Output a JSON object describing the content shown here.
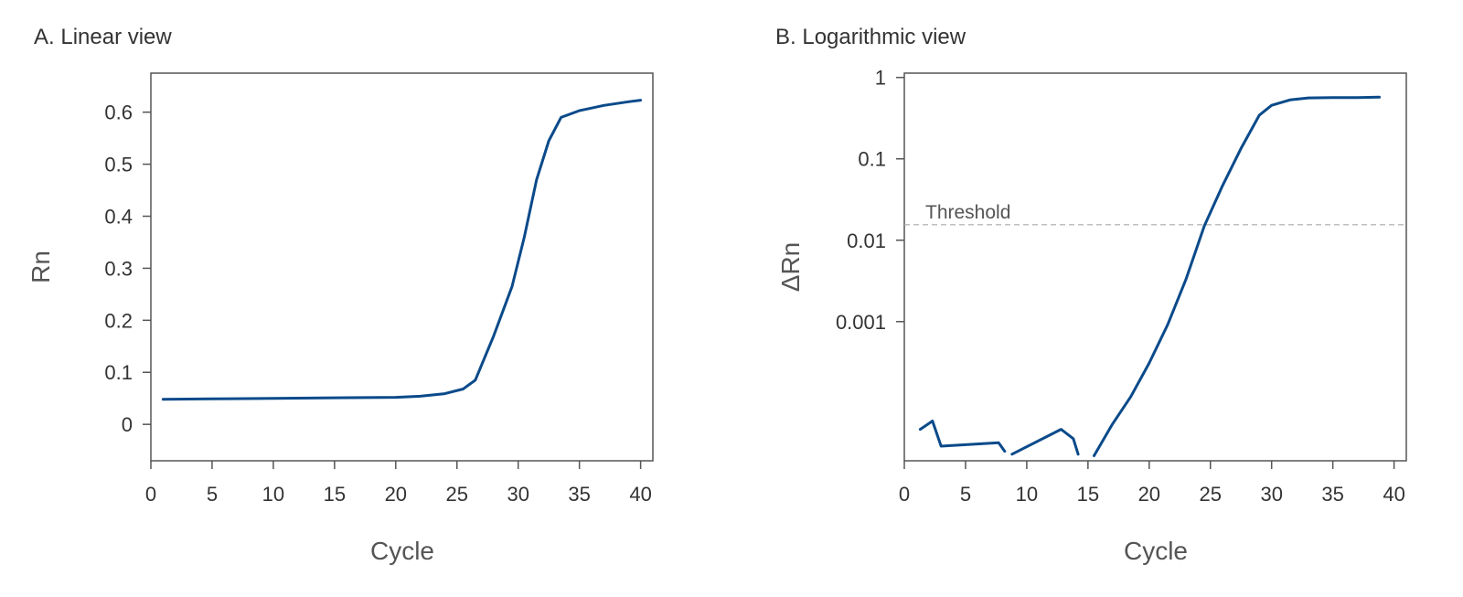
{
  "figure": {
    "line_color": "#0a4a8a",
    "threshold_color": "#aaaaaa",
    "axis_color": "#555555"
  },
  "chart_data": [
    {
      "id": "linear",
      "type": "line",
      "title": "A. Linear view",
      "xlabel": "Cycle",
      "ylabel": "Rn",
      "xlim": [
        0,
        41
      ],
      "ylim": [
        -0.07,
        0.675
      ],
      "y_scale": "linear",
      "grid": false,
      "x_ticks": [
        0,
        5,
        10,
        15,
        20,
        25,
        30,
        35,
        40
      ],
      "y_ticks": [
        0,
        0.1,
        0.2,
        0.3,
        0.4,
        0.5,
        0.6
      ],
      "y_tick_labels": [
        "0",
        "0.1",
        "0.2",
        "0.3",
        "0.4",
        "0.5",
        "0.6"
      ],
      "series": [
        {
          "color": "#0a4a8a",
          "segments": [
            [
              [
                1,
                0.048
              ],
              [
                5,
                0.049
              ],
              [
                10,
                0.05
              ],
              [
                15,
                0.051
              ],
              [
                20,
                0.052
              ],
              [
                22,
                0.054
              ],
              [
                24,
                0.059
              ],
              [
                25.5,
                0.068
              ],
              [
                26.5,
                0.085
              ],
              [
                28,
                0.17
              ],
              [
                29.5,
                0.265
              ],
              [
                30.5,
                0.36
              ],
              [
                31.5,
                0.47
              ],
              [
                32.5,
                0.545
              ],
              [
                33.5,
                0.59
              ],
              [
                35,
                0.603
              ],
              [
                37,
                0.613
              ],
              [
                39,
                0.62
              ],
              [
                40,
                0.623
              ]
            ]
          ]
        }
      ]
    },
    {
      "id": "log",
      "type": "line",
      "title": "B. Logarithmic view",
      "xlabel": "Cycle",
      "ylabel": "ΔRn",
      "xlim": [
        0,
        41
      ],
      "ylim": [
        1.95e-05,
        1.13
      ],
      "y_scale": "log",
      "grid": false,
      "x_ticks": [
        0,
        5,
        10,
        15,
        20,
        25,
        30,
        35,
        40
      ],
      "y_ticks": [
        0.001,
        0.01,
        0.1,
        1
      ],
      "y_tick_labels": [
        "0.001",
        "0.01",
        "0.1",
        "1"
      ],
      "threshold": {
        "label": "Threshold",
        "value": 0.0155
      },
      "series": [
        {
          "color": "#0a4a8a",
          "segments": [
            [
              [
                1.3,
                4.75e-05
              ],
              [
                2.3,
                6e-05
              ],
              [
                3.0,
                2.95e-05
              ],
              [
                7.7,
                3.25e-05
              ],
              [
                8.2,
                2.55e-05
              ]
            ],
            [
              [
                8.8,
                2.35e-05
              ],
              [
                12.8,
                4.75e-05
              ],
              [
                13.8,
                3.65e-05
              ],
              [
                14.2,
                2.35e-05
              ]
            ],
            [
              [
                15.5,
                2.25e-05
              ],
              [
                17,
                5.5e-05
              ],
              [
                18.5,
                0.00012
              ],
              [
                20,
                0.00031
              ],
              [
                21.5,
                0.00091
              ],
              [
                23,
                0.0033
              ],
              [
                24.5,
                0.015
              ],
              [
                26,
                0.047
              ],
              [
                27.5,
                0.134
              ],
              [
                29,
                0.345
              ],
              [
                30,
                0.455
              ],
              [
                31.5,
                0.53
              ],
              [
                33,
                0.56
              ],
              [
                35,
                0.565
              ],
              [
                37,
                0.567
              ],
              [
                38.8,
                0.572
              ]
            ]
          ]
        }
      ]
    }
  ]
}
